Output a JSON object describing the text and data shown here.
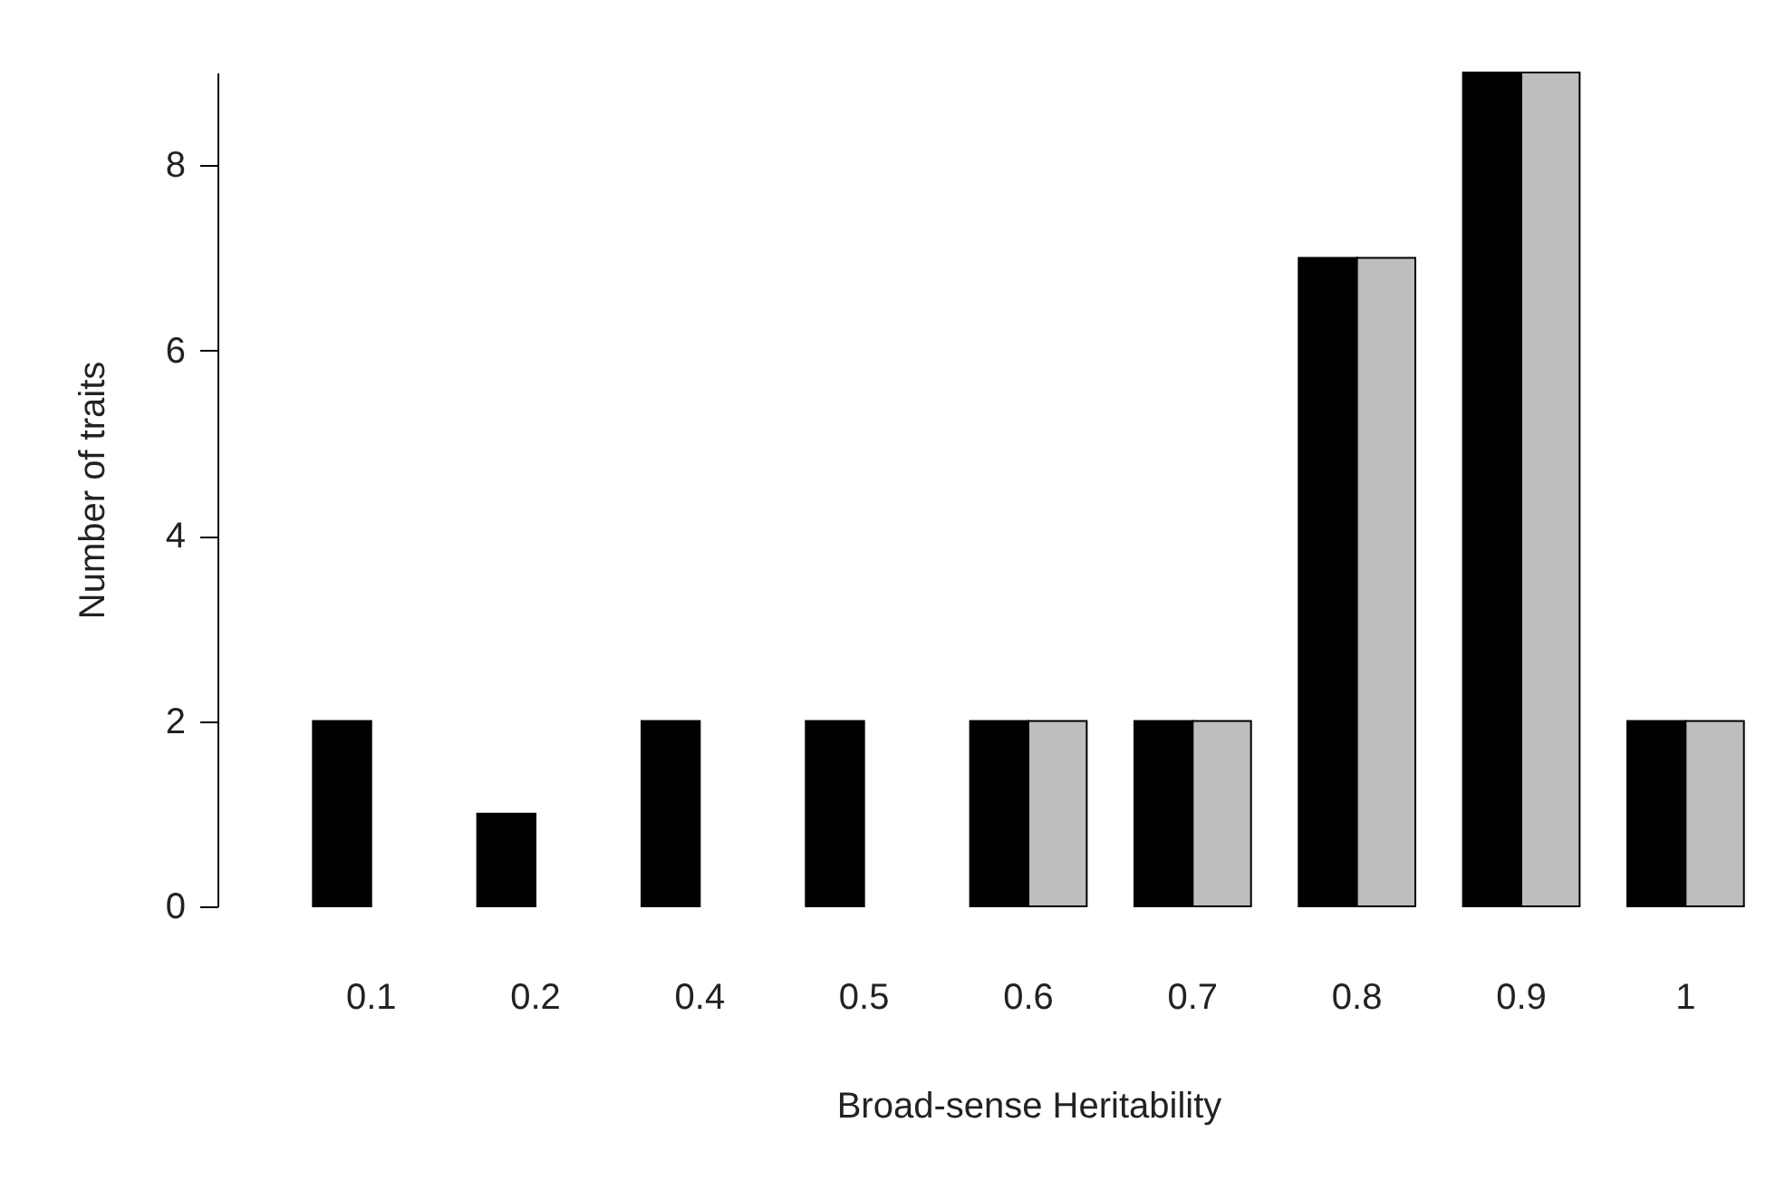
{
  "chart_data": {
    "type": "bar",
    "xlabel": "Broad-sense Heritability",
    "ylabel": "Number of traits",
    "categories": [
      "0.1",
      "0.2",
      "0.4",
      "0.5",
      "0.6",
      "0.7",
      "0.8",
      "0.9",
      "1"
    ],
    "series": [
      {
        "color": "#000000",
        "values": [
          2,
          1,
          2,
          2,
          2,
          2,
          7,
          9,
          2
        ]
      },
      {
        "color": "#bebebe",
        "values": [
          null,
          null,
          null,
          null,
          2,
          2,
          7,
          9,
          2
        ]
      }
    ],
    "ylim": [
      0,
      9
    ],
    "yticks": [
      0,
      2,
      4,
      6,
      8
    ],
    "grid": false,
    "legend": false
  }
}
